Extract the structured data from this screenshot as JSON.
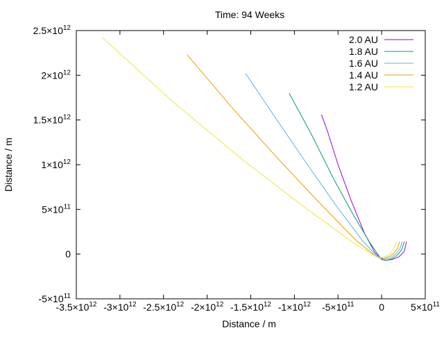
{
  "chart_data": {
    "type": "line",
    "title": "Time: 94 Weeks",
    "xlabel": "Distance / m",
    "ylabel": "Distance / m",
    "xlim": [
      -3500000000000.0,
      500000000000.0
    ],
    "ylim": [
      -500000000000.0,
      2500000000000.0
    ],
    "grid": false,
    "legend_position": "top-right",
    "x_ticks": [
      {
        "value": -3500000000000.0,
        "mantissa": "-3.5",
        "exp": "12"
      },
      {
        "value": -3000000000000.0,
        "mantissa": "-3",
        "exp": "12"
      },
      {
        "value": -2500000000000.0,
        "mantissa": "-2.5",
        "exp": "12"
      },
      {
        "value": -2000000000000.0,
        "mantissa": "-2",
        "exp": "12"
      },
      {
        "value": -1500000000000.0,
        "mantissa": "-1.5",
        "exp": "12"
      },
      {
        "value": -1000000000000.0,
        "mantissa": "-1",
        "exp": "12"
      },
      {
        "value": -500000000000.0,
        "mantissa": "-5",
        "exp": "11"
      },
      {
        "value": 0,
        "mantissa": "0",
        "exp": ""
      },
      {
        "value": 500000000000.0,
        "mantissa": "5",
        "exp": "11"
      }
    ],
    "y_ticks": [
      {
        "value": -500000000000.0,
        "mantissa": "-5",
        "exp": "11"
      },
      {
        "value": 0,
        "mantissa": "0",
        "exp": ""
      },
      {
        "value": 500000000000.0,
        "mantissa": "5",
        "exp": "11"
      },
      {
        "value": 1000000000000.0,
        "mantissa": "1",
        "exp": "12"
      },
      {
        "value": 1500000000000.0,
        "mantissa": "1.5",
        "exp": "12"
      },
      {
        "value": 2000000000000.0,
        "mantissa": "2",
        "exp": "12"
      },
      {
        "value": 2500000000000.0,
        "mantissa": "2.5",
        "exp": "12"
      }
    ],
    "series": [
      {
        "name": "2.0 AU",
        "color": "#9400d3",
        "x": [
          -690000000000.0,
          -620000000000.0,
          -500000000000.0,
          -350000000000.0,
          -200000000000.0,
          -80000000000.0,
          0,
          50000000000.0,
          120000000000.0,
          200000000000.0,
          260000000000.0,
          285000000000.0
        ],
        "y": [
          1560000000000.0,
          1370000000000.0,
          1000000000000.0,
          600000000000.0,
          240000000000.0,
          20000000000.0,
          -60000000000.0,
          -70000000000.0,
          -60000000000.0,
          -30000000000.0,
          30000000000.0,
          140000000000.0
        ]
      },
      {
        "name": "1.8 AU",
        "color": "#009e73",
        "x": [
          -1060000000000.0,
          -800000000000.0,
          -550000000000.0,
          -320000000000.0,
          -130000000000.0,
          -10000000000.0,
          50000000000.0,
          120000000000.0,
          180000000000.0,
          230000000000.0,
          260000000000.0
        ],
        "y": [
          1800000000000.0,
          1330000000000.0,
          840000000000.0,
          430000000000.0,
          120000000000.0,
          -50000000000.0,
          -70000000000.0,
          -50000000000.0,
          -10000000000.0,
          50000000000.0,
          140000000000.0
        ]
      },
      {
        "name": "1.6 AU",
        "color": "#56b4e9",
        "x": [
          -1560000000000.0,
          -1200000000000.0,
          -850000000000.0,
          -520000000000.0,
          -220000000000.0,
          -40000000000.0,
          30000000000.0,
          100000000000.0,
          160000000000.0,
          210000000000.0,
          235000000000.0
        ],
        "y": [
          2020000000000.0,
          1500000000000.0,
          1000000000000.0,
          540000000000.0,
          150000000000.0,
          -40000000000.0,
          -60000000000.0,
          -40000000000.0,
          0,
          60000000000.0,
          140000000000.0
        ]
      },
      {
        "name": "1.4 AU",
        "color": "#e69f00",
        "x": [
          -2230000000000.0,
          -1700000000000.0,
          -1200000000000.0,
          -700000000000.0,
          -300000000000.0,
          -60000000000.0,
          20000000000.0,
          80000000000.0,
          140000000000.0,
          185000000000.0,
          205000000000.0
        ],
        "y": [
          2230000000000.0,
          1620000000000.0,
          1080000000000.0,
          560000000000.0,
          160000000000.0,
          -30000000000.0,
          -50000000000.0,
          -30000000000.0,
          10000000000.0,
          70000000000.0,
          140000000000.0
        ]
      },
      {
        "name": "1.2 AU",
        "color": "#f0e442",
        "x": [
          -3200000000000.0,
          -2400000000000.0,
          -1600000000000.0,
          -850000000000.0,
          -300000000000.0,
          -60000000000.0,
          10000000000.0,
          60000000000.0,
          110000000000.0,
          150000000000.0,
          170000000000.0
        ],
        "y": [
          2420000000000.0,
          1710000000000.0,
          1060000000000.0,
          500000000000.0,
          110000000000.0,
          -30000000000.0,
          -40000000000.0,
          -20000000000.0,
          20000000000.0,
          80000000000.0,
          140000000000.0
        ]
      }
    ]
  }
}
